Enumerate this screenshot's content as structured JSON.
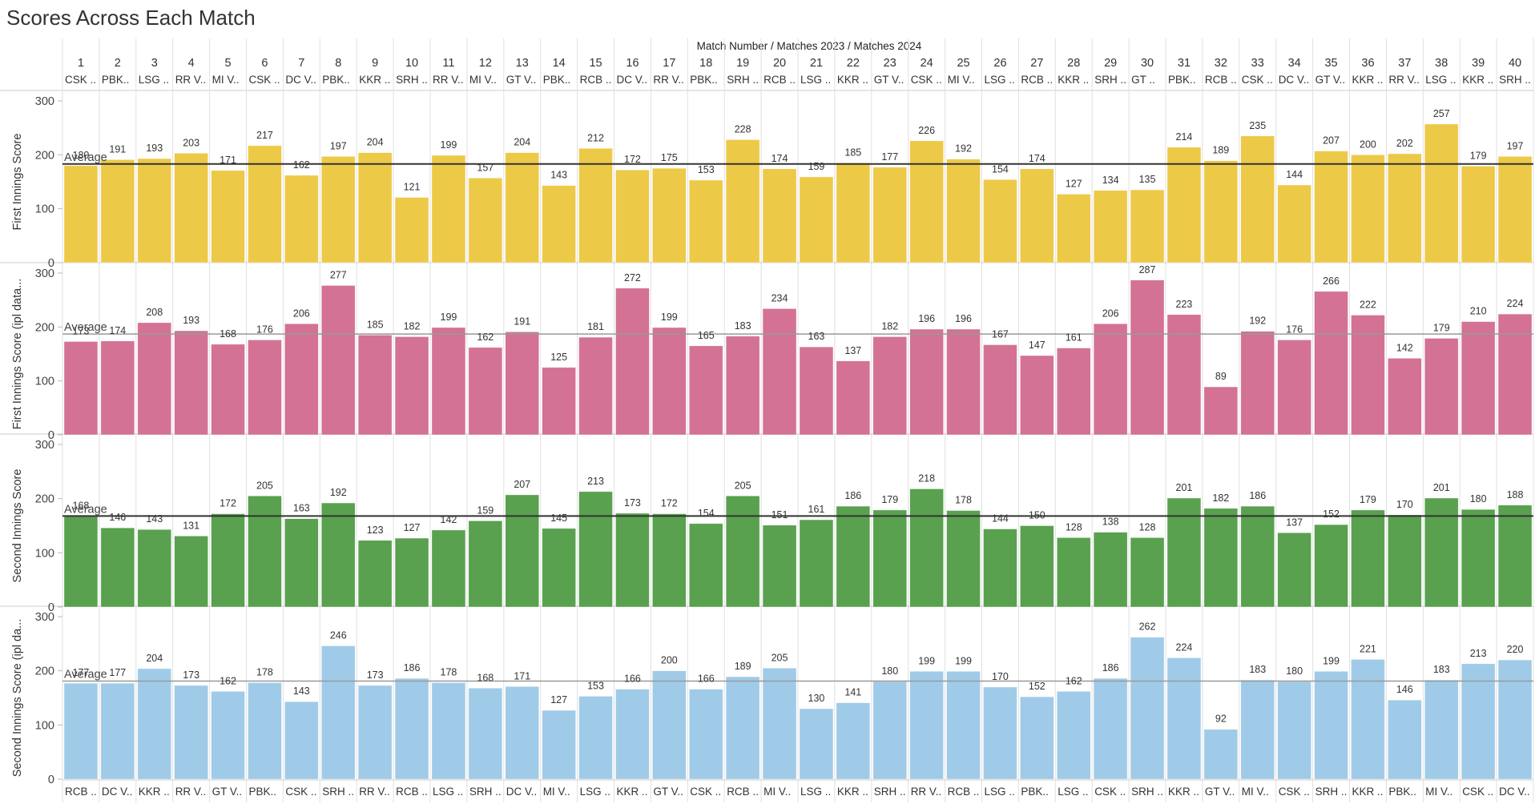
{
  "title": "Scores Across Each Match",
  "header": "Match Number / Matches 2023 / Matches 2024",
  "average_label": "Average",
  "colors": {
    "yellow": "#EDC948",
    "pink": "#D37295",
    "green": "#59A14F",
    "blue": "#A0CBE8",
    "average_line_dark": "#333333",
    "average_line_light": "#999999",
    "grid": "#D9D9D9"
  },
  "chart_data": {
    "type": "bar",
    "matches": [
      1,
      2,
      3,
      4,
      5,
      6,
      7,
      8,
      9,
      10,
      11,
      12,
      13,
      14,
      15,
      16,
      17,
      18,
      19,
      20,
      21,
      22,
      23,
      24,
      25,
      26,
      27,
      28,
      29,
      30,
      31,
      32,
      33,
      34,
      35,
      36,
      37,
      38,
      39,
      40
    ],
    "top_teams": [
      "CSK ..",
      "PBK..",
      "LSG ..",
      "RR V..",
      "MI V..",
      "CSK ..",
      "DC V..",
      "PBK..",
      "KKR ..",
      "SRH ..",
      "RR V..",
      "MI V..",
      "GT V..",
      "PBK..",
      "RCB ..",
      "DC V..",
      "RR V..",
      "PBK..",
      "SRH ..",
      "RCB ..",
      "LSG ..",
      "KKR ..",
      "GT V..",
      "CSK ..",
      "MI V..",
      "LSG ..",
      "RCB ..",
      "KKR ..",
      "SRH ..",
      "GT ..",
      "PBK..",
      "RCB ..",
      "CSK ..",
      "DC V..",
      "GT V..",
      "KKR ..",
      "RR V..",
      "LSG ..",
      "KKR ..",
      "SRH .."
    ],
    "bottom_teams": [
      "RCB ..",
      "DC V..",
      "KKR ..",
      "RR V..",
      "GT V..",
      "PBK..",
      "CSK ..",
      "SRH ..",
      "RR V..",
      "RCB ..",
      "LSG ..",
      "SRH ..",
      "DC V..",
      "MI V..",
      "LSG ..",
      "KKR ..",
      "GT V..",
      "CSK ..",
      "RCB ..",
      "MI V..",
      "LSG ..",
      "KKR ..",
      "SRH ..",
      "RR V..",
      "RCB ..",
      "LSG ..",
      "PBK..",
      "LSG ..",
      "CSK ..",
      "SRH ..",
      "KKR ..",
      "GT V..",
      "MI V..",
      "CSK ..",
      "SRH ..",
      "KKR ..",
      "PBK..",
      "MI V..",
      "CSK ..",
      "DC V.."
    ],
    "yticks": [
      0,
      100,
      200,
      300
    ],
    "ylim": [
      0,
      300
    ],
    "series": [
      {
        "name": "First Innings Score",
        "color": "#EDC948",
        "average": 183,
        "values": [
          180,
          191,
          193,
          203,
          171,
          217,
          162,
          197,
          204,
          121,
          199,
          157,
          204,
          143,
          212,
          172,
          175,
          153,
          228,
          174,
          159,
          185,
          177,
          226,
          192,
          154,
          174,
          127,
          134,
          135,
          214,
          189,
          235,
          144,
          207,
          200,
          202,
          257,
          179,
          197
        ]
      },
      {
        "name": "First Innings Score (ipl data...",
        "color": "#D37295",
        "average": 187,
        "values": [
          173,
          174,
          208,
          193,
          168,
          176,
          206,
          277,
          185,
          182,
          199,
          162,
          191,
          125,
          181,
          272,
          199,
          165,
          183,
          234,
          163,
          137,
          182,
          196,
          196,
          167,
          147,
          161,
          206,
          287,
          223,
          89,
          192,
          176,
          266,
          222,
          142,
          179,
          210,
          224
        ]
      },
      {
        "name": "Second Innings Score",
        "color": "#59A14F",
        "average": 168,
        "values": [
          168,
          146,
          143,
          131,
          172,
          205,
          163,
          192,
          123,
          127,
          142,
          159,
          207,
          145,
          213,
          173,
          172,
          154,
          205,
          151,
          161,
          186,
          179,
          218,
          178,
          144,
          150,
          128,
          138,
          128,
          201,
          182,
          186,
          137,
          152,
          179,
          170,
          201,
          180,
          188
        ]
      },
      {
        "name": "Second Innings Score (ipl da...",
        "color": "#A0CBE8",
        "average": 181,
        "values": [
          177,
          177,
          204,
          173,
          162,
          178,
          143,
          246,
          173,
          186,
          178,
          168,
          171,
          127,
          153,
          166,
          200,
          166,
          189,
          205,
          130,
          141,
          180,
          199,
          199,
          170,
          152,
          162,
          186,
          262,
          224,
          92,
          183,
          180,
          199,
          221,
          146,
          183,
          213,
          220
        ]
      }
    ]
  }
}
